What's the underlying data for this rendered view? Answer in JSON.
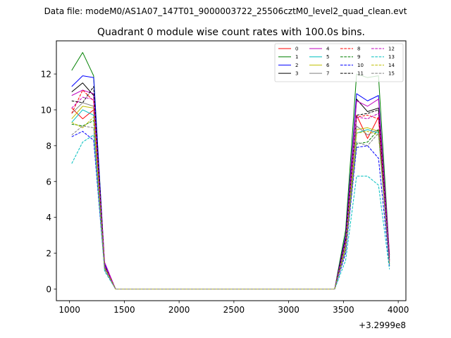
{
  "suptitle": "Data file: modeM0/AS1A07_147T01_9000003722_25506cztM0_level2_quad_clean.evt",
  "chart_data": {
    "type": "line",
    "title": "Quadrant 0 module wise count rates with 100.0s bins.",
    "xlabel": "",
    "ylabel": "",
    "x_offset_label": "+3.2999e8",
    "xlim": [
      880,
      4070
    ],
    "ylim": [
      -0.65,
      13.85
    ],
    "xticks": [
      1000,
      1500,
      2000,
      2500,
      3000,
      3500,
      4000
    ],
    "yticks": [
      0,
      2,
      4,
      6,
      8,
      10,
      12
    ],
    "grid": false,
    "legend_position": "top-right",
    "legend_columns": 4,
    "x": [
      1020,
      1120,
      1220,
      1320,
      1420,
      1520,
      1620,
      1720,
      1820,
      1920,
      2020,
      2120,
      2220,
      2320,
      2420,
      2520,
      2620,
      2720,
      2820,
      2920,
      3020,
      3120,
      3220,
      3320,
      3420,
      3520,
      3620,
      3720,
      3820,
      3920
    ],
    "series": [
      {
        "name": "0",
        "color": "#ff0000",
        "dash": false,
        "values": [
          10.1,
          9.5,
          10.0,
          1.2,
          0,
          0,
          0,
          0,
          0,
          0,
          0,
          0,
          0,
          0,
          0,
          0,
          0,
          0,
          0,
          0,
          0,
          0,
          0,
          0,
          0,
          2.5,
          9.7,
          8.4,
          9.6,
          1.5
        ]
      },
      {
        "name": "1",
        "color": "#008000",
        "dash": false,
        "values": [
          12.2,
          13.2,
          11.9,
          1.4,
          0,
          0,
          0,
          0,
          0,
          0,
          0,
          0,
          0,
          0,
          0,
          0,
          0,
          0,
          0,
          0,
          0,
          0,
          0,
          0,
          0,
          3.3,
          12.0,
          11.8,
          11.9,
          1.9
        ]
      },
      {
        "name": "2",
        "color": "#0000ff",
        "dash": false,
        "values": [
          11.3,
          11.9,
          11.8,
          1.4,
          0,
          0,
          0,
          0,
          0,
          0,
          0,
          0,
          0,
          0,
          0,
          0,
          0,
          0,
          0,
          0,
          0,
          0,
          0,
          0,
          0,
          3.0,
          10.9,
          10.5,
          10.8,
          1.8
        ]
      },
      {
        "name": "3",
        "color": "#000000",
        "dash": false,
        "values": [
          11.0,
          11.5,
          10.8,
          1.3,
          0,
          0,
          0,
          0,
          0,
          0,
          0,
          0,
          0,
          0,
          0,
          0,
          0,
          0,
          0,
          0,
          0,
          0,
          0,
          0,
          0,
          2.9,
          10.6,
          9.9,
          10.1,
          1.7
        ]
      },
      {
        "name": "4",
        "color": "#bf00bf",
        "dash": false,
        "values": [
          10.8,
          11.1,
          10.9,
          1.5,
          0,
          0,
          0,
          0,
          0,
          0,
          0,
          0,
          0,
          0,
          0,
          0,
          0,
          0,
          0,
          0,
          0,
          0,
          0,
          0,
          0,
          2.8,
          10.5,
          10.2,
          10.6,
          1.9
        ]
      },
      {
        "name": "5",
        "color": "#00bfbf",
        "dash": false,
        "values": [
          9.3,
          10.0,
          9.7,
          1.2,
          0,
          0,
          0,
          0,
          0,
          0,
          0,
          0,
          0,
          0,
          0,
          0,
          0,
          0,
          0,
          0,
          0,
          0,
          0,
          0,
          0,
          2.4,
          8.7,
          8.9,
          8.7,
          1.4
        ]
      },
      {
        "name": "6",
        "color": "#bfbf00",
        "dash": false,
        "values": [
          9.5,
          10.2,
          10.1,
          1.2,
          0,
          0,
          0,
          0,
          0,
          0,
          0,
          0,
          0,
          0,
          0,
          0,
          0,
          0,
          0,
          0,
          0,
          0,
          0,
          0,
          0,
          2.4,
          8.9,
          9.0,
          8.8,
          1.4
        ]
      },
      {
        "name": "7",
        "color": "#808080",
        "dash": false,
        "values": [
          9.8,
          10.4,
          10.2,
          1.2,
          0,
          0,
          0,
          0,
          0,
          0,
          0,
          0,
          0,
          0,
          0,
          0,
          0,
          0,
          0,
          0,
          0,
          0,
          0,
          0,
          0,
          2.5,
          9.1,
          8.6,
          8.9,
          1.5
        ]
      },
      {
        "name": "8",
        "color": "#ff0000",
        "dash": true,
        "values": [
          9.8,
          11.1,
          10.5,
          1.3,
          0,
          0,
          0,
          0,
          0,
          0,
          0,
          0,
          0,
          0,
          0,
          0,
          0,
          0,
          0,
          0,
          0,
          0,
          0,
          0,
          0,
          2.7,
          9.6,
          9.7,
          9.5,
          1.6
        ]
      },
      {
        "name": "9",
        "color": "#008000",
        "dash": true,
        "values": [
          9.2,
          9.1,
          9.4,
          1.2,
          0,
          0,
          0,
          0,
          0,
          0,
          0,
          0,
          0,
          0,
          0,
          0,
          0,
          0,
          0,
          0,
          0,
          0,
          0,
          0,
          0,
          2.2,
          8.1,
          8.2,
          8.9,
          1.3
        ]
      },
      {
        "name": "10",
        "color": "#0000ff",
        "dash": true,
        "values": [
          8.5,
          8.8,
          8.3,
          1.1,
          0,
          0,
          0,
          0,
          0,
          0,
          0,
          0,
          0,
          0,
          0,
          0,
          0,
          0,
          0,
          0,
          0,
          0,
          0,
          0,
          0,
          2.0,
          7.9,
          8.0,
          7.3,
          1.3
        ]
      },
      {
        "name": "11",
        "color": "#000000",
        "dash": true,
        "values": [
          10.5,
          10.4,
          11.3,
          1.3,
          0,
          0,
          0,
          0,
          0,
          0,
          0,
          0,
          0,
          0,
          0,
          0,
          0,
          0,
          0,
          0,
          0,
          0,
          0,
          0,
          0,
          2.7,
          9.7,
          9.8,
          10.0,
          1.6
        ]
      },
      {
        "name": "12",
        "color": "#bf00bf",
        "dash": true,
        "values": [
          10.1,
          10.7,
          10.6,
          1.3,
          0,
          0,
          0,
          0,
          0,
          0,
          0,
          0,
          0,
          0,
          0,
          0,
          0,
          0,
          0,
          0,
          0,
          0,
          0,
          0,
          0,
          2.7,
          9.6,
          9.5,
          9.8,
          1.6
        ]
      },
      {
        "name": "13",
        "color": "#00bfbf",
        "dash": true,
        "values": [
          7.0,
          8.2,
          8.6,
          1.0,
          0,
          0,
          0,
          0,
          0,
          0,
          0,
          0,
          0,
          0,
          0,
          0,
          0,
          0,
          0,
          0,
          0,
          0,
          0,
          0,
          0,
          1.6,
          6.3,
          6.3,
          5.8,
          1.1
        ]
      },
      {
        "name": "14",
        "color": "#bfbf00",
        "dash": true,
        "values": [
          9.3,
          9.0,
          9.6,
          1.2,
          0,
          0,
          0,
          0,
          0,
          0,
          0,
          0,
          0,
          0,
          0,
          0,
          0,
          0,
          0,
          0,
          0,
          0,
          0,
          0,
          0,
          2.3,
          8.7,
          8.8,
          8.6,
          1.4
        ]
      },
      {
        "name": "15",
        "color": "#808080",
        "dash": true,
        "values": [
          8.6,
          9.1,
          9.0,
          1.1,
          0,
          0,
          0,
          0,
          0,
          0,
          0,
          0,
          0,
          0,
          0,
          0,
          0,
          0,
          0,
          0,
          0,
          0,
          0,
          0,
          0,
          2.2,
          8.2,
          8.0,
          8.7,
          1.4
        ]
      }
    ]
  }
}
